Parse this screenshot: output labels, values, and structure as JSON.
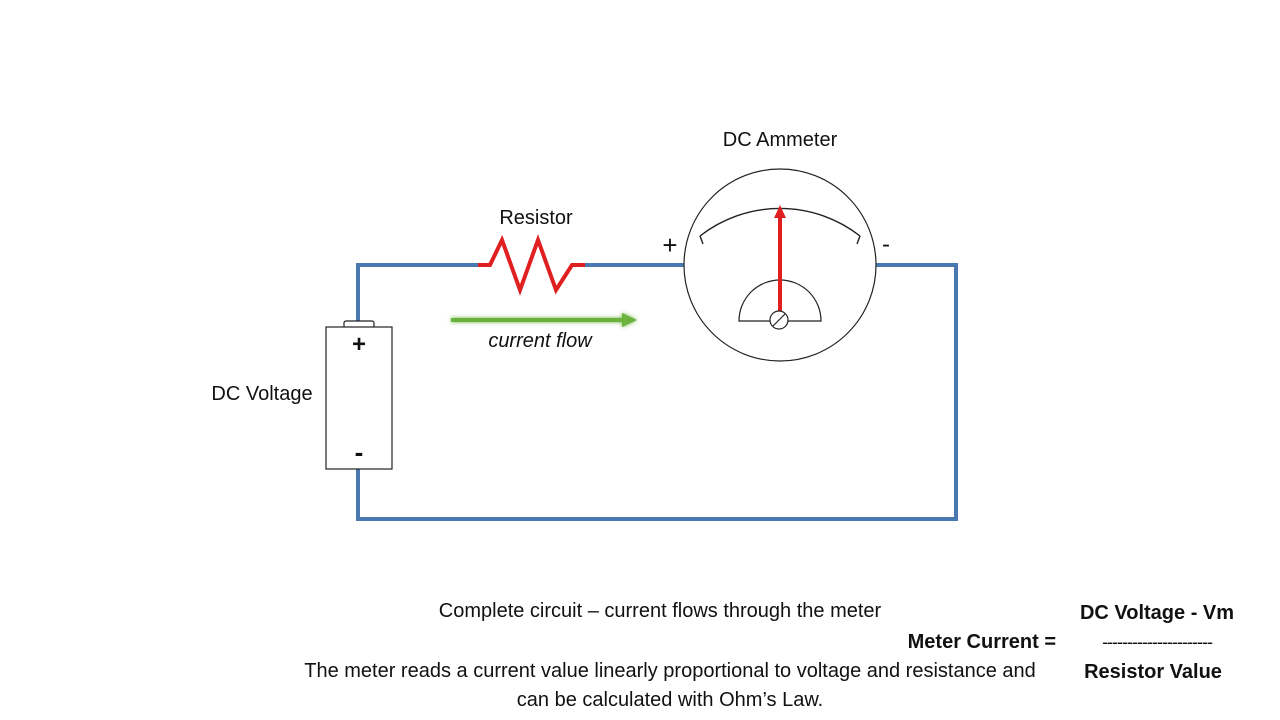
{
  "labels": {
    "ammeter": "DC Ammeter",
    "resistor": "Resistor",
    "current_flow": "current flow",
    "voltage": "DC Voltage",
    "battery_plus": "+",
    "battery_minus": "-",
    "meter_plus": "+",
    "meter_minus": "-"
  },
  "caption": {
    "title": "Complete circuit – current flows through the meter",
    "body": "The meter reads a current value linearly proportional to voltage and resistance and can be calculated with Ohm’s Law."
  },
  "formula": {
    "lhs": "Meter Current =",
    "numerator": "DC Voltage - Vm",
    "fraction_bar": "----------------------",
    "denominator": "Resistor Value"
  },
  "colors": {
    "wire": "#4a78b0",
    "resistor": "#e02020",
    "needle": "#e02020",
    "arrow": "#6ab23a",
    "outline": "#222222"
  },
  "icons": {
    "battery": "battery-icon",
    "resistor": "resistor-zigzag-icon",
    "meter": "analog-meter-icon",
    "arrow": "right-arrow-icon"
  }
}
